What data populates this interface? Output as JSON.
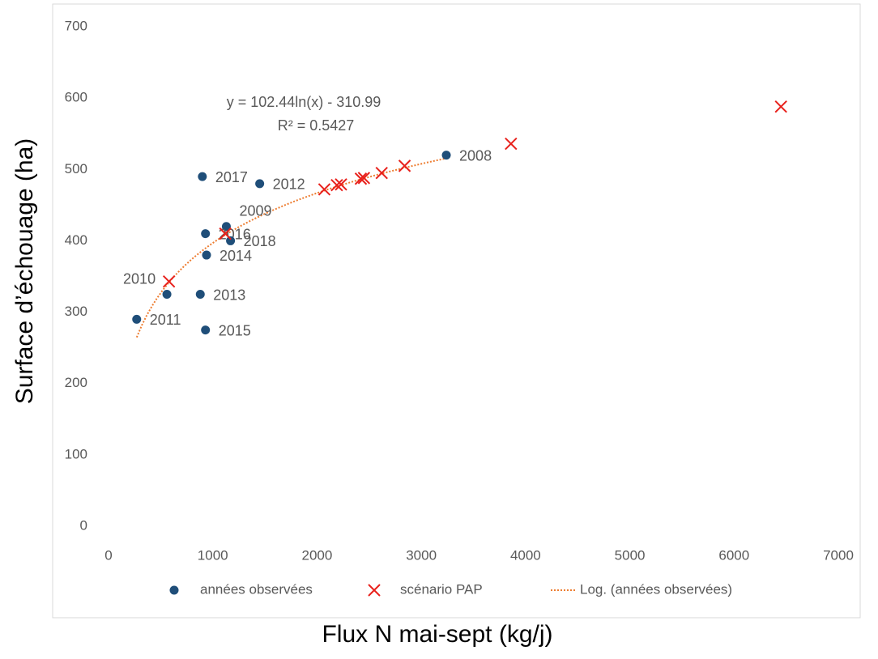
{
  "chart_data": {
    "type": "scatter",
    "x_label": "Flux N mai-sept (kg/j)",
    "y_label": "Surface d’échouage (ha)",
    "annotations": [
      "y = 102.44ln(x) - 310.99",
      "R² = 0.5427"
    ],
    "xlim": [
      0,
      7000
    ],
    "xticks": [
      0,
      1000,
      2000,
      3000,
      4000,
      5000,
      6000,
      7000
    ],
    "ylim": [
      0,
      700
    ],
    "yticks": [
      0,
      100,
      200,
      300,
      400,
      500,
      600,
      700
    ],
    "grid": false,
    "legend": "bottom",
    "trendline": {
      "name": "Log. (années observées)",
      "color": "#ed7d31",
      "series": 0
    },
    "series": [
      {
        "name": "années observées",
        "color": "#1f4e79",
        "marker": "circle",
        "x": [
          3240,
          900,
          1450,
          1130,
          930,
          1170,
          940,
          880,
          560,
          270,
          930
        ],
        "values": [
          520,
          490,
          480,
          420,
          410,
          400,
          380,
          325,
          325,
          290,
          275
        ],
        "labels": [
          "2008",
          "2017",
          "2012",
          "2009",
          "2016",
          "2018",
          "2014",
          "2013",
          "2010",
          "2011",
          "2015"
        ]
      },
      {
        "name": "scénario PAP",
        "color": "#e8211c",
        "marker": "x",
        "x": [
          580,
          1120,
          2070,
          2190,
          2230,
          2420,
          2450,
          2620,
          2840,
          3860,
          6450
        ],
        "values": [
          343,
          410,
          472,
          478,
          479,
          487,
          488,
          495,
          505,
          536,
          588
        ]
      }
    ]
  }
}
